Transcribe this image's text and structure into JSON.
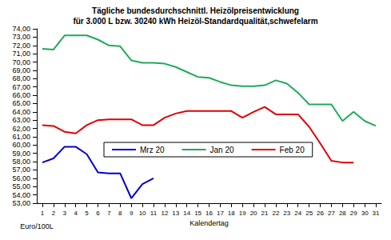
{
  "chart_data": {
    "type": "line",
    "title": "Tägliche bundesdurchschnittl. Heizölpreisentwicklung\nfür 3.000 L bzw. 30240 kWh Heizöl-Standardqualität,schwefelarm",
    "x_label": "Kalendertag",
    "y_label": "Euro/100L",
    "categories": [
      "1",
      "2",
      "3",
      "4",
      "5",
      "6",
      "7",
      "8",
      "9",
      "10",
      "11",
      "12",
      "13",
      "14",
      "15",
      "16",
      "17",
      "18",
      "19",
      "20",
      "21",
      "22",
      "23",
      "24",
      "25",
      "26",
      "27",
      "28",
      "29",
      "30",
      "31"
    ],
    "series": [
      {
        "name": "Mrz 20",
        "color": "#0000cc",
        "values": [
          57.9,
          58.4,
          59.8,
          59.8,
          58.9,
          56.7,
          56.6,
          56.6,
          53.6,
          55.3,
          56.0,
          null,
          null,
          null,
          null,
          null,
          null,
          null,
          null,
          null,
          null,
          null,
          null,
          null,
          null,
          null,
          null,
          null,
          null,
          null,
          null
        ]
      },
      {
        "name": "Jan 20",
        "color": "#1faa5a",
        "values": [
          71.6,
          71.5,
          73.2,
          73.2,
          73.2,
          72.7,
          72.0,
          71.9,
          70.2,
          69.9,
          69.9,
          69.8,
          69.4,
          68.8,
          68.2,
          68.1,
          67.6,
          67.2,
          67.1,
          67.1,
          67.2,
          67.8,
          67.4,
          66.3,
          64.9,
          64.9,
          64.9,
          62.9,
          64.0,
          62.9,
          62.3
        ]
      },
      {
        "name": "Feb 20",
        "color": "#e00000",
        "values": [
          62.4,
          62.3,
          61.6,
          61.4,
          62.4,
          63.0,
          63.1,
          63.1,
          63.1,
          62.4,
          62.4,
          63.3,
          63.8,
          64.1,
          64.1,
          64.1,
          64.1,
          64.1,
          63.3,
          64.0,
          64.6,
          63.7,
          63.7,
          63.7,
          62.2,
          60.2,
          58.1,
          57.9,
          57.9,
          null,
          null
        ]
      }
    ],
    "ylim": [
      53,
      74
    ],
    "yticks": [
      {
        "value": 53,
        "label": "53,00"
      },
      {
        "value": 54,
        "label": "54,00"
      },
      {
        "value": 55,
        "label": "55,00"
      },
      {
        "value": 56,
        "label": "56,00"
      },
      {
        "value": 57,
        "label": "57,00"
      },
      {
        "value": 58,
        "label": "58,00"
      },
      {
        "value": 59,
        "label": "59,00"
      },
      {
        "value": 60,
        "label": "60,00"
      },
      {
        "value": 61,
        "label": "61,00"
      },
      {
        "value": 62,
        "label": "62,00"
      },
      {
        "value": 63,
        "label": "63,00"
      },
      {
        "value": 64,
        "label": "64,00"
      },
      {
        "value": 65,
        "label": "65,00"
      },
      {
        "value": 66,
        "label": "66,00"
      },
      {
        "value": 67,
        "label": "67,00"
      },
      {
        "value": 68,
        "label": "68,00"
      },
      {
        "value": 69,
        "label": "69,00"
      },
      {
        "value": 70,
        "label": "70,00"
      },
      {
        "value": 71,
        "label": "71,00"
      },
      {
        "value": 72,
        "label": "72,00"
      },
      {
        "value": 73,
        "label": "73,00"
      },
      {
        "value": 74,
        "label": "74,00"
      }
    ],
    "grid": false,
    "legend": "center",
    "marker": "none"
  }
}
